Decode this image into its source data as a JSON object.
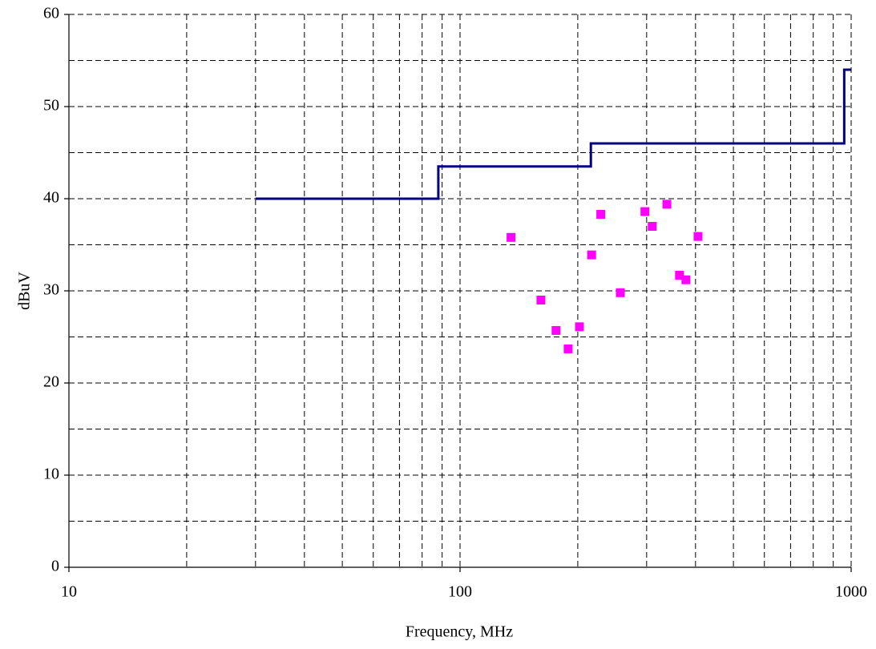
{
  "chart_data": {
    "type": "scatter",
    "x_label": "Frequency, MHz",
    "y_label": "dBuV",
    "xscale": "log",
    "xlim": [
      10,
      1000
    ],
    "xticks": [
      10,
      100,
      1000
    ],
    "ylim": [
      0,
      60
    ],
    "yticks": [
      0,
      10,
      20,
      30,
      40,
      50,
      60
    ],
    "grid": true,
    "series": [
      {
        "mode": "line",
        "color": "#000080",
        "x": [
          30,
          88,
          88,
          216,
          216,
          960,
          960,
          1000
        ],
        "values": [
          40,
          40,
          43.5,
          43.5,
          46,
          46,
          54,
          54
        ]
      },
      {
        "mode": "markers",
        "color": "#ff00ff",
        "x": [
          135,
          161,
          176,
          189,
          202,
          217,
          229,
          257,
          297,
          310,
          338,
          364,
          378,
          406
        ],
        "values": [
          35.8,
          29.0,
          25.7,
          23.7,
          26.1,
          33.9,
          38.3,
          29.8,
          38.6,
          37.0,
          39.4,
          31.7,
          31.2,
          35.9
        ]
      }
    ]
  }
}
